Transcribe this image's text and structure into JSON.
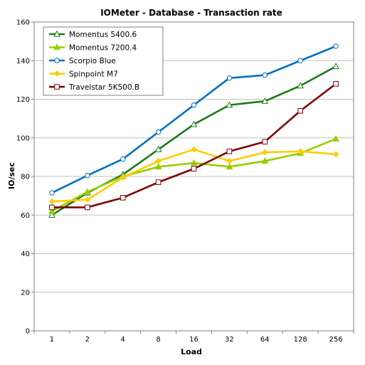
{
  "chart_data": {
    "type": "line",
    "title": "IOMeter - Database - Transaction rate",
    "xlabel": "Load",
    "ylabel": "IO/sec",
    "categories": [
      "1",
      "2",
      "4",
      "8",
      "16",
      "32",
      "64",
      "128",
      "256"
    ],
    "ylim": [
      0,
      160
    ],
    "yticks": [
      0,
      20,
      40,
      60,
      80,
      100,
      120,
      140,
      160
    ],
    "grid": true,
    "legend": "top-left",
    "series": [
      {
        "name": "Momentus 5400.6",
        "color": "#1a7a1a",
        "marker": "triangle-open",
        "values": [
          60,
          71.5,
          81,
          94,
          107,
          117,
          119,
          127,
          137
        ]
      },
      {
        "name": "Momentus 7200.4",
        "color": "#99cc00",
        "marker": "triangle-filled",
        "values": [
          62,
          72,
          80,
          85,
          87,
          85,
          88,
          92,
          99.5
        ]
      },
      {
        "name": "Scorpio Blue",
        "color": "#0070c0",
        "marker": "circle-open",
        "values": [
          71.5,
          80.5,
          89,
          103,
          117,
          131,
          132.5,
          140,
          147.5
        ]
      },
      {
        "name": "Spinpoint M7",
        "color": "#ffcc00",
        "marker": "diamond-filled",
        "values": [
          67,
          68,
          79.5,
          88,
          94,
          88,
          92.5,
          93,
          91.5
        ]
      },
      {
        "name": "Travelstar 5K500.B",
        "color": "#800000",
        "marker": "square-open",
        "values": [
          64,
          64,
          69,
          77,
          84,
          93,
          98,
          114,
          128
        ]
      }
    ]
  }
}
